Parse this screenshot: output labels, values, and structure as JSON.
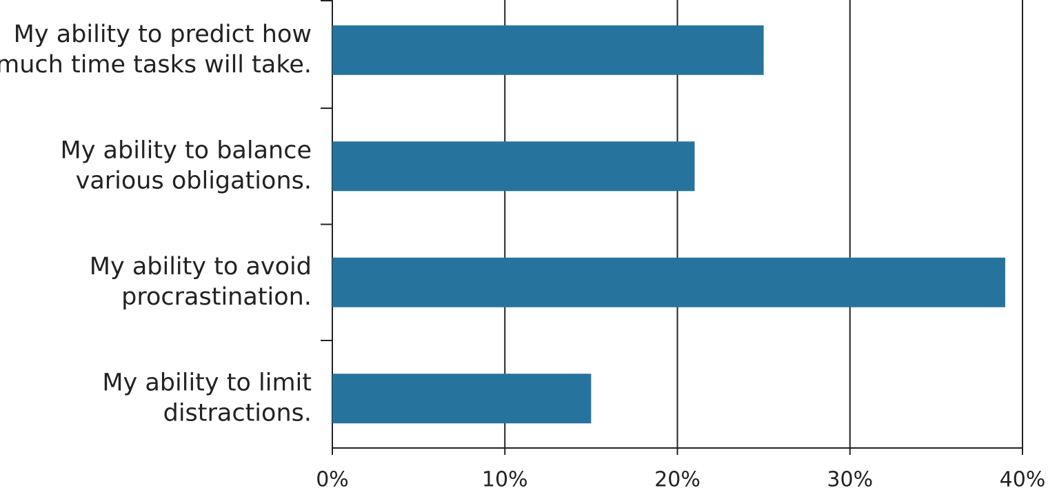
{
  "chart_data": {
    "type": "bar",
    "orientation": "horizontal",
    "categories": [
      [
        "My ability to predict how",
        "much time tasks will take."
      ],
      [
        "My ability to balance",
        "various obligations."
      ],
      [
        "My ability to avoid",
        "procrastination."
      ],
      [
        "My ability to limit",
        "distractions."
      ]
    ],
    "values": [
      25,
      21,
      39,
      15
    ],
    "color": "#26749e",
    "xlim": [
      0,
      40
    ],
    "xticks": [
      {
        "value": 0,
        "label": "0%"
      },
      {
        "value": 10,
        "label": "10%"
      },
      {
        "value": 20,
        "label": "20%"
      },
      {
        "value": 30,
        "label": "30%"
      },
      {
        "value": 40,
        "label": "40%"
      }
    ],
    "grid": true
  }
}
